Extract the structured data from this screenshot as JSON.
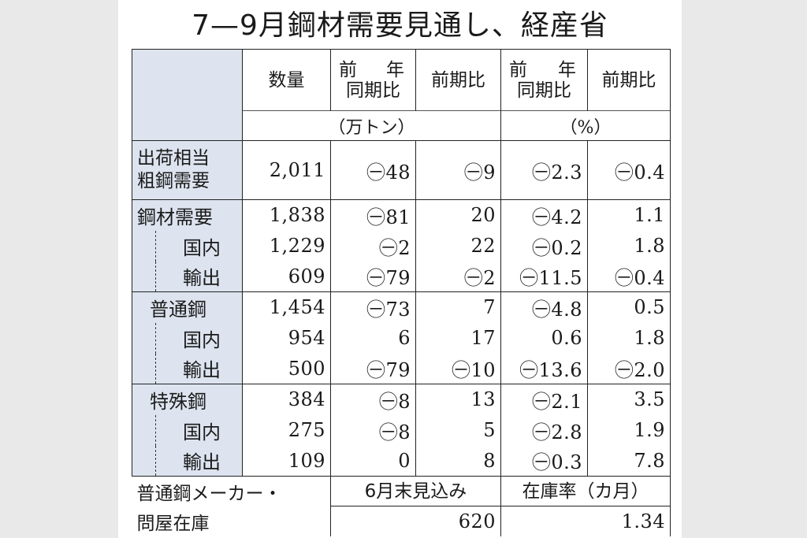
{
  "title": "7—9月鋼材需要見通し、経産省",
  "headers": {
    "quantity": "数量",
    "yoy_top_left": "前",
    "yoy_top_right": "年",
    "yoy_bottom": "同期比",
    "qoq": "前期比",
    "unit_left": "（万トン）",
    "unit_right": "（%）"
  },
  "rows": [
    {
      "label1": "出荷相当",
      "label2": "粗鋼需要",
      "qty": "2,011",
      "yoy": "㊀48",
      "qoq": "㊀9",
      "yoy_pct": "㊀2.3",
      "qoq_pct": "㊀0.4"
    },
    {
      "label": "鋼材需要",
      "qty": "1,838",
      "yoy": "㊀81",
      "qoq": "20",
      "yoy_pct": "㊀4.2",
      "qoq_pct": "1.1"
    },
    {
      "label": "国内",
      "qty": "1,229",
      "yoy": "㊀2",
      "qoq": "22",
      "yoy_pct": "㊀0.2",
      "qoq_pct": "1.8"
    },
    {
      "label": "輸出",
      "qty": "609",
      "yoy": "㊀79",
      "qoq": "㊀2",
      "yoy_pct": "㊀11.5",
      "qoq_pct": "㊀0.4"
    },
    {
      "label": "普通鋼",
      "qty": "1,454",
      "yoy": "㊀73",
      "qoq": "7",
      "yoy_pct": "㊀4.8",
      "qoq_pct": "0.5"
    },
    {
      "label": "国内",
      "qty": "954",
      "yoy": "6",
      "qoq": "17",
      "yoy_pct": "0.6",
      "qoq_pct": "1.8"
    },
    {
      "label": "輸出",
      "qty": "500",
      "yoy": "㊀79",
      "qoq": "㊀10",
      "yoy_pct": "㊀13.6",
      "qoq_pct": "㊀2.0"
    },
    {
      "label": "特殊鋼",
      "qty": "384",
      "yoy": "㊀8",
      "qoq": "13",
      "yoy_pct": "㊀2.1",
      "qoq_pct": "3.5"
    },
    {
      "label": "国内",
      "qty": "275",
      "yoy": "㊀8",
      "qoq": "5",
      "yoy_pct": "㊀2.8",
      "qoq_pct": "1.9"
    },
    {
      "label": "輸出",
      "qty": "109",
      "yoy": "0",
      "qoq": "8",
      "yoy_pct": "㊀0.3",
      "qoq_pct": "7.8"
    }
  ],
  "inventory": {
    "label1": "普通鋼メーカー・",
    "label2": "問屋在庫",
    "forecast_header": "6月末見込み",
    "ratio_header": "在庫率（カ月）",
    "forecast_value": "620",
    "ratio_value": "1.34"
  }
}
